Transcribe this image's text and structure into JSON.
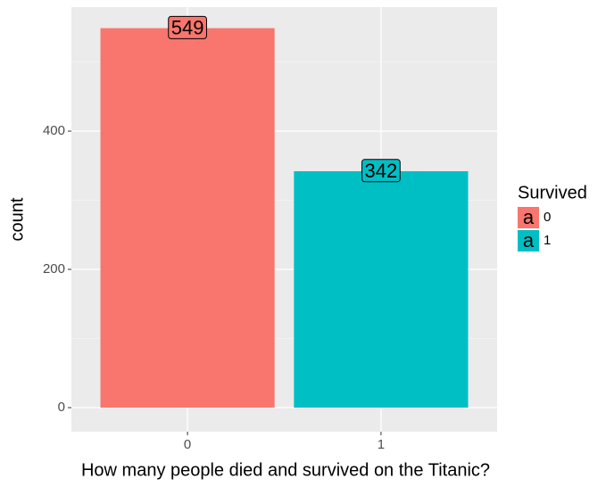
{
  "chart_data": {
    "type": "bar",
    "categories": [
      "0",
      "1"
    ],
    "values": [
      549,
      342
    ],
    "colors": [
      "#F8766D",
      "#00BFC4"
    ],
    "x_label": "How many people died and survived on the Titanic?",
    "y_label": "count",
    "ylim": [
      -34.8,
      579.4
    ],
    "yticks": [
      0,
      200,
      400
    ],
    "y_minor_grid": [
      100,
      300,
      500
    ],
    "grid": true,
    "legend": {
      "title": "Survived",
      "position": "right",
      "key_glyph": "a"
    }
  }
}
